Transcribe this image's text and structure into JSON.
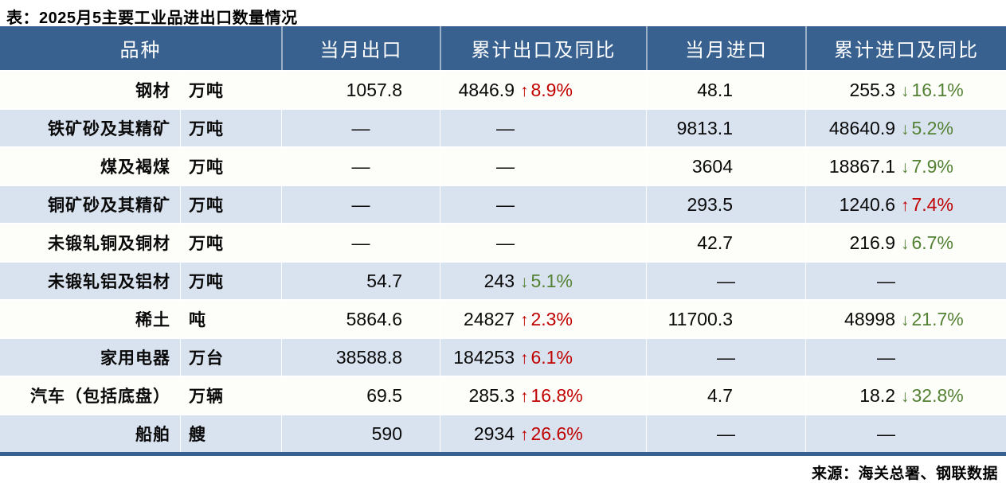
{
  "title": "表：2025月5主要工业品进出口数量情况",
  "source": "来源：海关总署、钢联数据",
  "dash": "—",
  "icons": {
    "up_arrow": "↑",
    "down_arrow": "↓"
  },
  "colors": {
    "header_bg": "#38618F",
    "bar": "#35608F",
    "row_alt": "#D9E2EF",
    "row_white": "#FDFDF9",
    "up_red": "#C00000",
    "down_green": "#548235"
  },
  "chart_data": {
    "type": "table",
    "title": "表：2025月5主要工业品进出口数量情况",
    "source": "来源：海关总署、钢联数据",
    "headers": [
      "品种",
      "当月出口",
      "累计出口及同比",
      "当月进口",
      "累计进口及同比"
    ],
    "rows": [
      {
        "name": "钢材",
        "unit": "万吨",
        "month_export": "1057.8",
        "cum_export": {
          "value": "4846.9",
          "dir": "up",
          "yoy": "8.9%"
        },
        "month_import": "48.1",
        "cum_import": {
          "value": "255.3",
          "dir": "down",
          "yoy": "16.1%"
        }
      },
      {
        "name": "铁矿砂及其精矿",
        "unit": "万吨",
        "month_export": "—",
        "cum_export": {
          "value": "—"
        },
        "month_import": "9813.1",
        "cum_import": {
          "value": "48640.9",
          "dir": "down",
          "yoy": "5.2%"
        }
      },
      {
        "name": "煤及褐煤",
        "unit": "万吨",
        "month_export": "—",
        "cum_export": {
          "value": "—"
        },
        "month_import": "3604",
        "cum_import": {
          "value": "18867.1",
          "dir": "down",
          "yoy": "7.9%"
        }
      },
      {
        "name": "铜矿砂及其精矿",
        "unit": "万吨",
        "month_export": "—",
        "cum_export": {
          "value": "—"
        },
        "month_import": "293.5",
        "cum_import": {
          "value": "1240.6",
          "dir": "up",
          "yoy": "7.4%"
        }
      },
      {
        "name": "未锻轧铜及铜材",
        "unit": "万吨",
        "month_export": "—",
        "cum_export": {
          "value": "—"
        },
        "month_import": "42.7",
        "cum_import": {
          "value": "216.9",
          "dir": "down",
          "yoy": "6.7%"
        }
      },
      {
        "name": "未锻轧铝及铝材",
        "unit": "万吨",
        "month_export": "54.7",
        "cum_export": {
          "value": "243",
          "dir": "down",
          "yoy": "5.1%"
        },
        "month_import": "—",
        "cum_import": {
          "value": "—"
        }
      },
      {
        "name": "稀土",
        "unit": "吨",
        "month_export": "5864.6",
        "cum_export": {
          "value": "24827",
          "dir": "up",
          "yoy": "2.3%"
        },
        "month_import": "11700.3",
        "cum_import": {
          "value": "48998",
          "dir": "down",
          "yoy": "21.7%"
        }
      },
      {
        "name": "家用电器",
        "unit": "万台",
        "month_export": "38588.8",
        "cum_export": {
          "value": "184253",
          "dir": "up",
          "yoy": "6.1%"
        },
        "month_import": "—",
        "cum_import": {
          "value": "—"
        }
      },
      {
        "name": "汽车（包括底盘）",
        "unit": "万辆",
        "month_export": "69.5",
        "cum_export": {
          "value": "285.3",
          "dir": "up",
          "yoy": "16.8%"
        },
        "month_import": "4.7",
        "cum_import": {
          "value": "18.2",
          "dir": "down",
          "yoy": "32.8%"
        }
      },
      {
        "name": "船舶",
        "unit": "艘",
        "month_export": "590",
        "cum_export": {
          "value": "2934",
          "dir": "up",
          "yoy": "26.6%"
        },
        "month_import": "—",
        "cum_import": {
          "value": "—"
        }
      }
    ]
  }
}
